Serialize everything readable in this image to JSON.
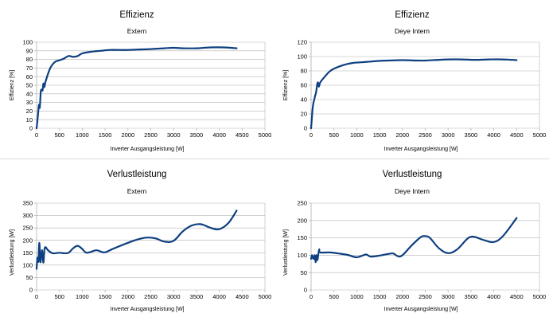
{
  "chart_data": [
    {
      "type": "line",
      "title": "Effizienz",
      "subtitle": "Extern",
      "xlabel": "Inverter Ausgangsleistung [W]",
      "ylabel": "Effizienz [%]",
      "xlim": [
        0,
        5000
      ],
      "ylim": [
        0,
        100
      ],
      "xticks": [
        0,
        500,
        1000,
        1500,
        2000,
        2500,
        3000,
        3500,
        4000,
        4500,
        5000
      ],
      "yticks": [
        0,
        10,
        20,
        30,
        40,
        50,
        60,
        70,
        80,
        90,
        100
      ],
      "grid": true,
      "series": [
        {
          "color": "#0e3f80",
          "points": [
            [
              0,
              0
            ],
            [
              30,
              15
            ],
            [
              50,
              27
            ],
            [
              70,
              24
            ],
            [
              90,
              42
            ],
            [
              110,
              45
            ],
            [
              130,
              44
            ],
            [
              150,
              52
            ],
            [
              170,
              48
            ],
            [
              200,
              55
            ],
            [
              300,
              70
            ],
            [
              400,
              77
            ],
            [
              500,
              79
            ],
            [
              600,
              81
            ],
            [
              700,
              84
            ],
            [
              800,
              83
            ],
            [
              900,
              84
            ],
            [
              1000,
              87
            ],
            [
              1200,
              89
            ],
            [
              1400,
              90
            ],
            [
              1600,
              91
            ],
            [
              1800,
              91
            ],
            [
              2000,
              91
            ],
            [
              2200,
              91.5
            ],
            [
              2500,
              92
            ],
            [
              2800,
              93
            ],
            [
              3000,
              93.5
            ],
            [
              3200,
              93
            ],
            [
              3500,
              93
            ],
            [
              3800,
              94
            ],
            [
              4100,
              94
            ],
            [
              4380,
              93
            ]
          ]
        }
      ]
    },
    {
      "type": "line",
      "title": "Effizienz",
      "subtitle": "Deye Intern",
      "xlabel": "Inverter Ausgangsleistung [W]",
      "ylabel": "Effizienz [%]",
      "xlim": [
        0,
        5000
      ],
      "ylim": [
        0,
        120
      ],
      "xticks": [
        0,
        500,
        1000,
        1500,
        2000,
        2500,
        3000,
        3500,
        4000,
        4500,
        5000
      ],
      "yticks": [
        0,
        20,
        40,
        60,
        80,
        100,
        120
      ],
      "grid": true,
      "series": [
        {
          "color": "#0e3f80",
          "points": [
            [
              0,
              0
            ],
            [
              30,
              25
            ],
            [
              50,
              35
            ],
            [
              70,
              40
            ],
            [
              90,
              46
            ],
            [
              110,
              50
            ],
            [
              130,
              60
            ],
            [
              150,
              64
            ],
            [
              170,
              58
            ],
            [
              200,
              64
            ],
            [
              300,
              72
            ],
            [
              400,
              79
            ],
            [
              500,
              83
            ],
            [
              700,
              88
            ],
            [
              900,
              91
            ],
            [
              1100,
              92
            ],
            [
              1300,
              93
            ],
            [
              1500,
              94
            ],
            [
              1700,
              94.5
            ],
            [
              2000,
              95
            ],
            [
              2300,
              94.5
            ],
            [
              2500,
              94.5
            ],
            [
              2800,
              95.5
            ],
            [
              3000,
              96
            ],
            [
              3300,
              96
            ],
            [
              3600,
              95.5
            ],
            [
              3900,
              96
            ],
            [
              4200,
              96
            ],
            [
              4500,
              95
            ]
          ]
        }
      ]
    },
    {
      "type": "line",
      "title": "Verlustleistung",
      "subtitle": "Extern",
      "xlabel": "Inverter Ausgangsleistung [W]",
      "ylabel": "Verlustleistung [W]",
      "xlim": [
        0,
        5000
      ],
      "ylim": [
        0,
        350
      ],
      "xticks": [
        0,
        500,
        1000,
        1500,
        2000,
        2500,
        3000,
        3500,
        4000,
        4500,
        5000
      ],
      "yticks": [
        0,
        50,
        100,
        150,
        200,
        250,
        300,
        350
      ],
      "grid": true,
      "series": [
        {
          "color": "#0e3f80",
          "points": [
            [
              0,
              85
            ],
            [
              20,
              130
            ],
            [
              40,
              115
            ],
            [
              60,
              190
            ],
            [
              80,
              115
            ],
            [
              100,
              130
            ],
            [
              120,
              160
            ],
            [
              150,
              110
            ],
            [
              180,
              170
            ],
            [
              250,
              160
            ],
            [
              350,
              148
            ],
            [
              500,
              150
            ],
            [
              600,
              148
            ],
            [
              700,
              150
            ],
            [
              800,
              168
            ],
            [
              900,
              178
            ],
            [
              1000,
              165
            ],
            [
              1100,
              150
            ],
            [
              1300,
              160
            ],
            [
              1400,
              155
            ],
            [
              1500,
              152
            ],
            [
              1700,
              168
            ],
            [
              2000,
              190
            ],
            [
              2200,
              203
            ],
            [
              2400,
              211
            ],
            [
              2600,
              208
            ],
            [
              2800,
              195
            ],
            [
              3000,
              198
            ],
            [
              3200,
              236
            ],
            [
              3400,
              260
            ],
            [
              3600,
              265
            ],
            [
              3800,
              251
            ],
            [
              4000,
              245
            ],
            [
              4200,
              270
            ],
            [
              4380,
              320
            ]
          ]
        }
      ]
    },
    {
      "type": "line",
      "title": "Verlustleistung",
      "subtitle": "Deye Intern",
      "xlabel": "Inverter Ausgangsleistung [W]",
      "ylabel": "Verlustleistung [W]",
      "xlim": [
        0,
        5000
      ],
      "ylim": [
        0,
        250
      ],
      "xticks": [
        0,
        500,
        1000,
        1500,
        2000,
        2500,
        3000,
        3500,
        4000,
        4500,
        5000
      ],
      "yticks": [
        0,
        50,
        100,
        150,
        200,
        250
      ],
      "grid": true,
      "series": [
        {
          "color": "#0e3f80",
          "points": [
            [
              0,
              90
            ],
            [
              20,
              100
            ],
            [
              40,
              92
            ],
            [
              60,
              90
            ],
            [
              80,
              100
            ],
            [
              100,
              80
            ],
            [
              120,
              100
            ],
            [
              140,
              86
            ],
            [
              160,
              105
            ],
            [
              180,
              117
            ],
            [
              200,
              108
            ],
            [
              400,
              108
            ],
            [
              600,
              105
            ],
            [
              800,
              101
            ],
            [
              1000,
              94
            ],
            [
              1200,
              102
            ],
            [
              1300,
              96
            ],
            [
              1500,
              99
            ],
            [
              1700,
              104
            ],
            [
              1800,
              105
            ],
            [
              1900,
              97
            ],
            [
              2000,
              100
            ],
            [
              2200,
              128
            ],
            [
              2400,
              152
            ],
            [
              2500,
              155
            ],
            [
              2600,
              150
            ],
            [
              2800,
              120
            ],
            [
              3000,
              106
            ],
            [
              3200,
              117
            ],
            [
              3400,
              145
            ],
            [
              3500,
              153
            ],
            [
              3600,
              152
            ],
            [
              3800,
              143
            ],
            [
              4000,
              138
            ],
            [
              4200,
              155
            ],
            [
              4500,
              207
            ]
          ]
        }
      ]
    }
  ]
}
